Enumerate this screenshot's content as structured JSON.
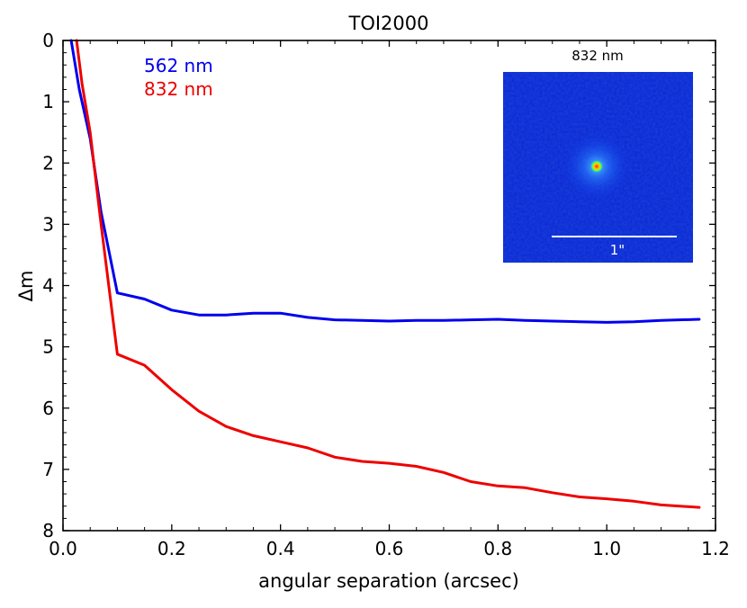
{
  "chart_data": {
    "type": "line",
    "title": "TOI2000",
    "xlabel": "angular separation (arcsec)",
    "ylabel": "Δm",
    "xlim": [
      0.0,
      1.2
    ],
    "ylim": [
      8,
      0
    ],
    "y_inverted": true,
    "grid": false,
    "legend_placement": "top-left",
    "x_ticks": [
      "0.0",
      "0.2",
      "0.4",
      "0.6",
      "0.8",
      "1.0",
      "1.2"
    ],
    "y_ticks": [
      "0",
      "1",
      "2",
      "3",
      "4",
      "5",
      "6",
      "7",
      "8"
    ],
    "series": [
      {
        "name": "562 nm",
        "color": "#0000ee",
        "x": [
          0.015,
          0.03,
          0.05,
          0.07,
          0.1,
          0.15,
          0.2,
          0.25,
          0.3,
          0.35,
          0.4,
          0.45,
          0.5,
          0.55,
          0.6,
          0.65,
          0.7,
          0.75,
          0.8,
          0.85,
          0.9,
          0.95,
          1.0,
          1.05,
          1.1,
          1.17
        ],
        "y": [
          0.0,
          0.8,
          1.6,
          2.8,
          4.12,
          4.22,
          4.4,
          4.48,
          4.48,
          4.45,
          4.45,
          4.52,
          4.56,
          4.57,
          4.58,
          4.57,
          4.57,
          4.56,
          4.55,
          4.57,
          4.58,
          4.59,
          4.6,
          4.59,
          4.57,
          4.55
        ]
      },
      {
        "name": "832 nm",
        "color": "#ee0000",
        "x": [
          0.025,
          0.035,
          0.05,
          0.07,
          0.1,
          0.15,
          0.2,
          0.25,
          0.3,
          0.35,
          0.4,
          0.45,
          0.5,
          0.55,
          0.6,
          0.65,
          0.7,
          0.75,
          0.8,
          0.85,
          0.9,
          0.95,
          1.0,
          1.05,
          1.1,
          1.17
        ],
        "y": [
          0.0,
          0.7,
          1.5,
          3.0,
          5.12,
          5.3,
          5.7,
          6.05,
          6.3,
          6.45,
          6.55,
          6.65,
          6.8,
          6.87,
          6.9,
          6.95,
          7.05,
          7.2,
          7.27,
          7.3,
          7.38,
          7.45,
          7.48,
          7.52,
          7.58,
          7.62
        ]
      }
    ],
    "inset": {
      "title": "832 nm",
      "scale_label": "1\""
    }
  }
}
